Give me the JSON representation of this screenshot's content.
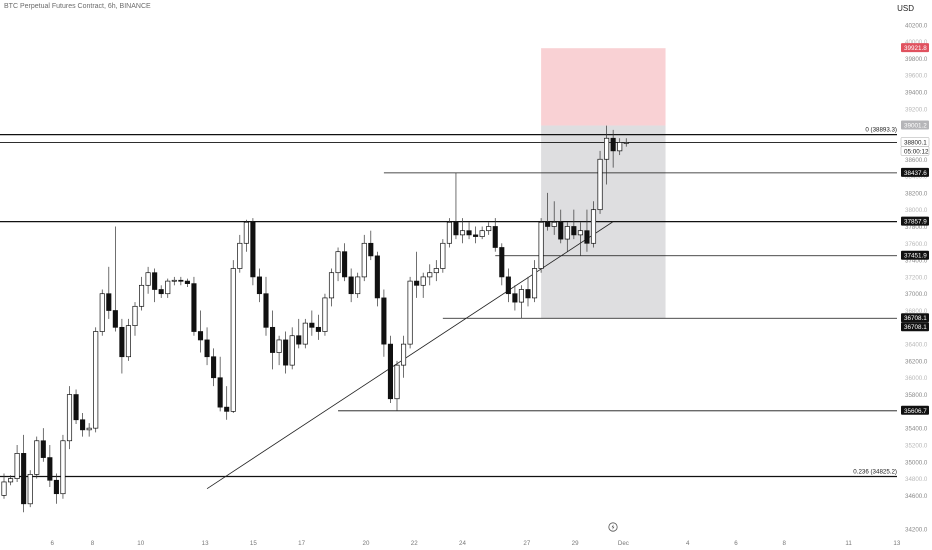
{
  "header": {
    "title": "BTC Perpetual Futures Contract, 6h, BINANCE"
  },
  "currency": "USD",
  "chart_data": {
    "type": "candlestick",
    "title": "BTC Perpetual Futures Contract, 6h, BINANCE",
    "ylim": [
      34200,
      40400
    ],
    "xlim": [
      0,
      116
    ],
    "price_ticks": [
      "40200.0",
      "39800.0",
      "39400.0",
      "39000.0",
      "38600.0",
      "38200.0",
      "37800.0",
      "37400.0",
      "37000.0",
      "36600.0",
      "36200.0",
      "35800.0",
      "35400.0",
      "35000.0",
      "34600.0",
      "34200.0"
    ],
    "price_tick_values": [
      40200,
      39800,
      39400,
      39000,
      38600,
      38200,
      37800,
      37400,
      37000,
      36600,
      36200,
      35800,
      35400,
      35000,
      34600,
      34200
    ],
    "extra_tick_labels": [
      {
        "text": "40000.0",
        "value": 40000
      },
      {
        "text": "39600.0",
        "value": 39600
      },
      {
        "text": "39200.0",
        "value": 39200
      },
      {
        "text": "38800.0",
        "value": 38800
      },
      {
        "text": "38400.0",
        "value": 38400
      },
      {
        "text": "38000.0",
        "value": 38000
      },
      {
        "text": "37600.0",
        "value": 37600
      },
      {
        "text": "37200.0",
        "value": 37200
      },
      {
        "text": "36800.0",
        "value": 36800
      },
      {
        "text": "36400.0",
        "value": 36400
      },
      {
        "text": "36000.0",
        "value": 36000
      },
      {
        "text": "35600.0",
        "value": 35600
      },
      {
        "text": "35200.0",
        "value": 35200
      },
      {
        "text": "34800.0",
        "value": 34800
      }
    ],
    "x_ticks": [
      {
        "label": "6",
        "x": 6
      },
      {
        "label": "8",
        "x": 11
      },
      {
        "label": "10",
        "x": 17
      },
      {
        "label": "13",
        "x": 25
      },
      {
        "label": "15",
        "x": 31
      },
      {
        "label": "17",
        "x": 37
      },
      {
        "label": "20",
        "x": 45
      },
      {
        "label": "22",
        "x": 51
      },
      {
        "label": "24",
        "x": 57
      },
      {
        "label": "27",
        "x": 65
      },
      {
        "label": "29",
        "x": 71
      },
      {
        "label": "Dec",
        "x": 77
      },
      {
        "label": "4",
        "x": 85
      },
      {
        "label": "6",
        "x": 91
      },
      {
        "label": "8",
        "x": 97
      },
      {
        "label": "11",
        "x": 105
      },
      {
        "label": "13",
        "x": 111
      },
      {
        "label": "15",
        "x": 117
      }
    ],
    "price_labels": [
      {
        "text": "39921.8",
        "value": 39921.8,
        "style": "red"
      },
      {
        "text": "39001.2",
        "value": 39001.2,
        "style": "gray"
      },
      {
        "text": "38800.1",
        "value": 38800.1,
        "style": "white"
      },
      {
        "text": "05:00:12",
        "value": 38800.1,
        "style": "white-sub"
      },
      {
        "text": "38437.6",
        "value": 38437.6,
        "style": "black"
      },
      {
        "text": "37857.9",
        "value": 37857.9,
        "style": "black"
      },
      {
        "text": "37451.9",
        "value": 37451.9,
        "style": "black"
      },
      {
        "text": "36708.1",
        "value": 36708.1,
        "style": "black"
      },
      {
        "text": "36708.1",
        "value": 36708.1,
        "style": "black-sub"
      },
      {
        "text": "35606.7",
        "value": 35606.7,
        "style": "black"
      }
    ],
    "fib_labels": [
      {
        "text": "0 (38893.3)",
        "value": 38893.3
      },
      {
        "text": "0.236 (34825.2)",
        "value": 34825.2
      }
    ],
    "horizontal_lines": [
      {
        "value": 38893.3,
        "x_from": 0,
        "x_to": 119,
        "weight": "bold"
      },
      {
        "value": 38800.1,
        "x_from": 0,
        "x_to": 119,
        "weight": "thin"
      },
      {
        "value": 37857.9,
        "x_from": 0,
        "x_to": 119,
        "weight": "bold"
      },
      {
        "value": 34825.2,
        "x_from": 0,
        "x_to": 119,
        "weight": "bold"
      },
      {
        "value": 38437.6,
        "x_from": 58,
        "x_to": 119,
        "weight": "thin"
      },
      {
        "value": 37451.9,
        "x_from": 75,
        "x_to": 119,
        "weight": "thin"
      },
      {
        "value": 36708.1,
        "x_from": 67,
        "x_to": 119,
        "weight": "thin"
      },
      {
        "value": 35606.7,
        "x_from": 51,
        "x_to": 119,
        "weight": "thin"
      }
    ],
    "trendline": {
      "x1": 31,
      "y1": 34680,
      "x2": 93,
      "y2": 37857.9
    },
    "position_tool": {
      "x_from": 82,
      "x_to": 101,
      "stop": 39921.8,
      "entry": 39001.2,
      "target": 36708.1
    },
    "candles": [
      [
        34600,
        34860,
        34560,
        34760
      ],
      [
        34760,
        34840,
        34720,
        34800
      ],
      [
        34800,
        35200,
        34760,
        35100
      ],
      [
        35100,
        35320,
        34400,
        34500
      ],
      [
        34500,
        34900,
        34460,
        34850
      ],
      [
        34850,
        35300,
        34800,
        35250
      ],
      [
        35250,
        35400,
        35000,
        35050
      ],
      [
        35050,
        35200,
        34700,
        34780
      ],
      [
        34780,
        34860,
        34500,
        34620
      ],
      [
        34620,
        35320,
        34560,
        35250
      ],
      [
        35250,
        35900,
        35150,
        35800
      ],
      [
        35800,
        35860,
        35450,
        35500
      ],
      [
        35500,
        35580,
        35300,
        35380
      ],
      [
        35380,
        35460,
        35300,
        35400
      ],
      [
        35400,
        36600,
        35350,
        36550
      ],
      [
        36550,
        37050,
        36500,
        37000
      ],
      [
        37000,
        37320,
        36700,
        36800
      ],
      [
        36800,
        37800,
        36550,
        36600
      ],
      [
        36600,
        36700,
        36050,
        36250
      ],
      [
        36250,
        36700,
        36200,
        36620
      ],
      [
        36620,
        36900,
        36500,
        36850
      ],
      [
        36850,
        37200,
        36800,
        37100
      ],
      [
        37100,
        37320,
        37000,
        37250
      ],
      [
        37250,
        37300,
        36900,
        37050
      ],
      [
        37050,
        37100,
        36950,
        37000
      ],
      [
        37000,
        37180,
        36950,
        37150
      ],
      [
        37150,
        37200,
        37100,
        37160
      ],
      [
        37160,
        37200,
        37100,
        37150
      ],
      [
        37150,
        37180,
        37080,
        37120
      ],
      [
        37120,
        37200,
        36500,
        36550
      ],
      [
        36550,
        36800,
        36300,
        36450
      ],
      [
        36450,
        36600,
        36150,
        36250
      ],
      [
        36250,
        36350,
        35900,
        36000
      ],
      [
        36000,
        36250,
        35600,
        35650
      ],
      [
        35650,
        35900,
        35500,
        35600
      ],
      [
        35600,
        37400,
        35580,
        37300
      ],
      [
        37300,
        37700,
        37250,
        37600
      ],
      [
        37600,
        37880,
        37500,
        37850
      ],
      [
        37850,
        37900,
        37100,
        37200
      ],
      [
        37200,
        37300,
        36900,
        37000
      ],
      [
        37000,
        37200,
        36500,
        36600
      ],
      [
        36600,
        36800,
        36100,
        36300
      ],
      [
        36300,
        36500,
        36150,
        36450
      ],
      [
        36450,
        36550,
        36050,
        36150
      ],
      [
        36150,
        36600,
        36100,
        36500
      ],
      [
        36500,
        36700,
        36350,
        36400
      ],
      [
        36400,
        36700,
        36350,
        36650
      ],
      [
        36650,
        36800,
        36500,
        36600
      ],
      [
        36600,
        36750,
        36450,
        36550
      ],
      [
        36550,
        37000,
        36500,
        36950
      ],
      [
        36950,
        37300,
        36850,
        37250
      ],
      [
        37250,
        37550,
        37150,
        37500
      ],
      [
        37500,
        37600,
        37150,
        37200
      ],
      [
        37200,
        37300,
        36900,
        37000
      ],
      [
        37000,
        37250,
        36950,
        37200
      ],
      [
        37200,
        37700,
        37150,
        37600
      ],
      [
        37600,
        37750,
        37400,
        37450
      ],
      [
        37450,
        37500,
        36850,
        36950
      ],
      [
        36950,
        37050,
        36250,
        36400
      ],
      [
        36400,
        36500,
        35700,
        35750
      ],
      [
        35750,
        36200,
        35606.7,
        36150
      ],
      [
        36150,
        36500,
        36000,
        36400
      ],
      [
        36400,
        37200,
        36350,
        37150
      ],
      [
        37150,
        37500,
        36950,
        37100
      ],
      [
        37100,
        37250,
        36950,
        37200
      ],
      [
        37200,
        37350,
        37100,
        37250
      ],
      [
        37250,
        37400,
        37150,
        37300
      ],
      [
        37300,
        37650,
        37250,
        37600
      ],
      [
        37600,
        37900,
        37550,
        37850
      ],
      [
        37850,
        38437.6,
        37650,
        37700
      ],
      [
        37700,
        37900,
        37600,
        37750
      ],
      [
        37750,
        37850,
        37650,
        37700
      ],
      [
        37700,
        37800,
        37600,
        37680
      ],
      [
        37680,
        37800,
        37650,
        37750
      ],
      [
        37750,
        37850,
        37700,
        37800
      ],
      [
        37800,
        37900,
        37500,
        37550
      ],
      [
        37550,
        37600,
        37100,
        37200
      ],
      [
        37200,
        37300,
        36900,
        37000
      ],
      [
        37000,
        37100,
        36800,
        36900
      ],
      [
        36900,
        37100,
        36708.1,
        37050
      ],
      [
        37050,
        37200,
        36850,
        36950
      ],
      [
        36950,
        37400,
        36900,
        37300
      ],
      [
        37300,
        37900,
        37250,
        37850
      ],
      [
        37850,
        38200,
        37750,
        37800
      ],
      [
        37800,
        38100,
        37700,
        37850
      ],
      [
        37850,
        38000,
        37600,
        37650
      ],
      [
        37650,
        37850,
        37500,
        37800
      ],
      [
        37800,
        38000,
        37650,
        37700
      ],
      [
        37700,
        37850,
        37451.9,
        37750
      ],
      [
        37750,
        38000,
        37500,
        37600
      ],
      [
        37600,
        38100,
        37550,
        38000
      ],
      [
        38000,
        38700,
        37950,
        38600
      ],
      [
        38600,
        39000,
        38300,
        38850
      ],
      [
        38850,
        38950,
        38500,
        38700
      ],
      [
        38700,
        38850,
        38650,
        38800
      ],
      [
        38800,
        38850,
        38750,
        38800
      ]
    ]
  }
}
